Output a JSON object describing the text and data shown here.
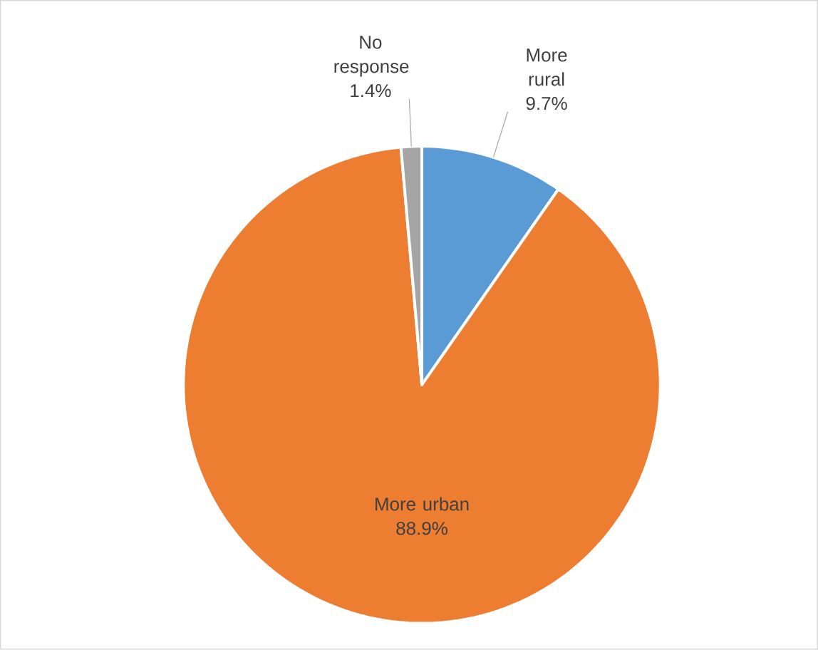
{
  "chart_data": {
    "type": "pie",
    "categories": [
      "More rural",
      "More urban",
      "No response"
    ],
    "values": [
      9.7,
      88.9,
      1.4
    ],
    "value_labels": [
      "9.7%",
      "88.9%",
      "1.4%"
    ],
    "colors": [
      "#5b9bd5",
      "#ed7d31",
      "#a5a5a5"
    ]
  }
}
